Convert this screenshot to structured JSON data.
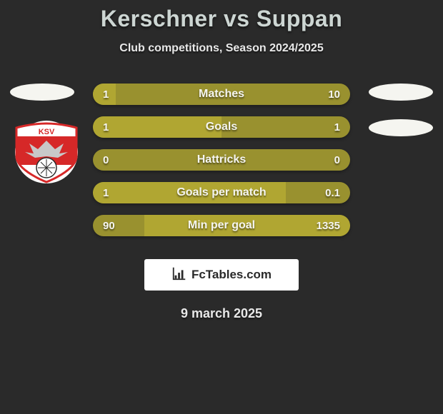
{
  "title": "Kerschner vs Suppan",
  "subtitle": "Club competitions, Season 2024/2025",
  "date": "9 march 2025",
  "brand": "FcTables.com",
  "colors": {
    "background": "#2a2a2a",
    "bar_track": "#99912f",
    "bar_fill": "#b0a632",
    "text_light": "#f5f5f0",
    "title_color": "#cdd6d3",
    "brand_bg": "#ffffff"
  },
  "typography": {
    "title_fontsize": 32,
    "subtitle_fontsize": 16,
    "bar_label_fontsize": 16,
    "bar_value_fontsize": 15,
    "date_fontsize": 18
  },
  "bars": [
    {
      "label": "Matches",
      "left_val": "1",
      "right_val": "10",
      "left_pct": 9,
      "right_pct": 0
    },
    {
      "label": "Goals",
      "left_val": "1",
      "right_val": "1",
      "left_pct": 50,
      "right_pct": 0
    },
    {
      "label": "Hattricks",
      "left_val": "0",
      "right_val": "0",
      "left_pct": 0,
      "right_pct": 0
    },
    {
      "label": "Goals per match",
      "left_val": "1",
      "right_val": "0.1",
      "left_pct": 75,
      "right_pct": 0
    },
    {
      "label": "Min per goal",
      "left_val": "90",
      "right_val": "1335",
      "left_pct": 0,
      "right_pct": 80
    }
  ],
  "badge": {
    "bg": "#ffffff",
    "red": "#d62828",
    "eagle": "#c8c8c8",
    "text": "KSV"
  }
}
